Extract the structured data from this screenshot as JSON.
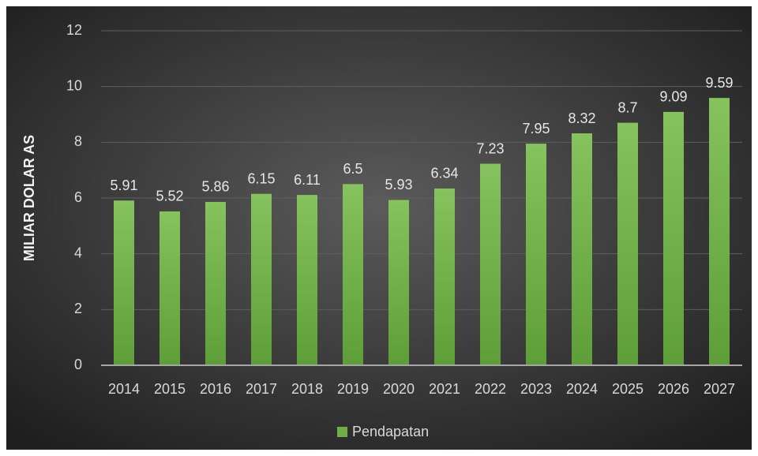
{
  "chart_data": {
    "type": "bar",
    "y_axis_label": "MILIAR DOLAR AS",
    "categories": [
      "2014",
      "2015",
      "2016",
      "2017",
      "2018",
      "2019",
      "2020",
      "2021",
      "2022",
      "2023",
      "2024",
      "2025",
      "2026",
      "2027"
    ],
    "series": [
      {
        "name": "Pendapatan",
        "color": "#70ad47",
        "values": [
          5.91,
          5.52,
          5.86,
          6.15,
          6.11,
          6.5,
          5.93,
          6.34,
          7.23,
          7.95,
          8.32,
          8.7,
          9.09,
          9.59
        ]
      }
    ],
    "ylim": [
      0,
      12
    ],
    "yticks": [
      0,
      2,
      4,
      6,
      8,
      10,
      12
    ],
    "grid": true,
    "legend": "bottom"
  }
}
